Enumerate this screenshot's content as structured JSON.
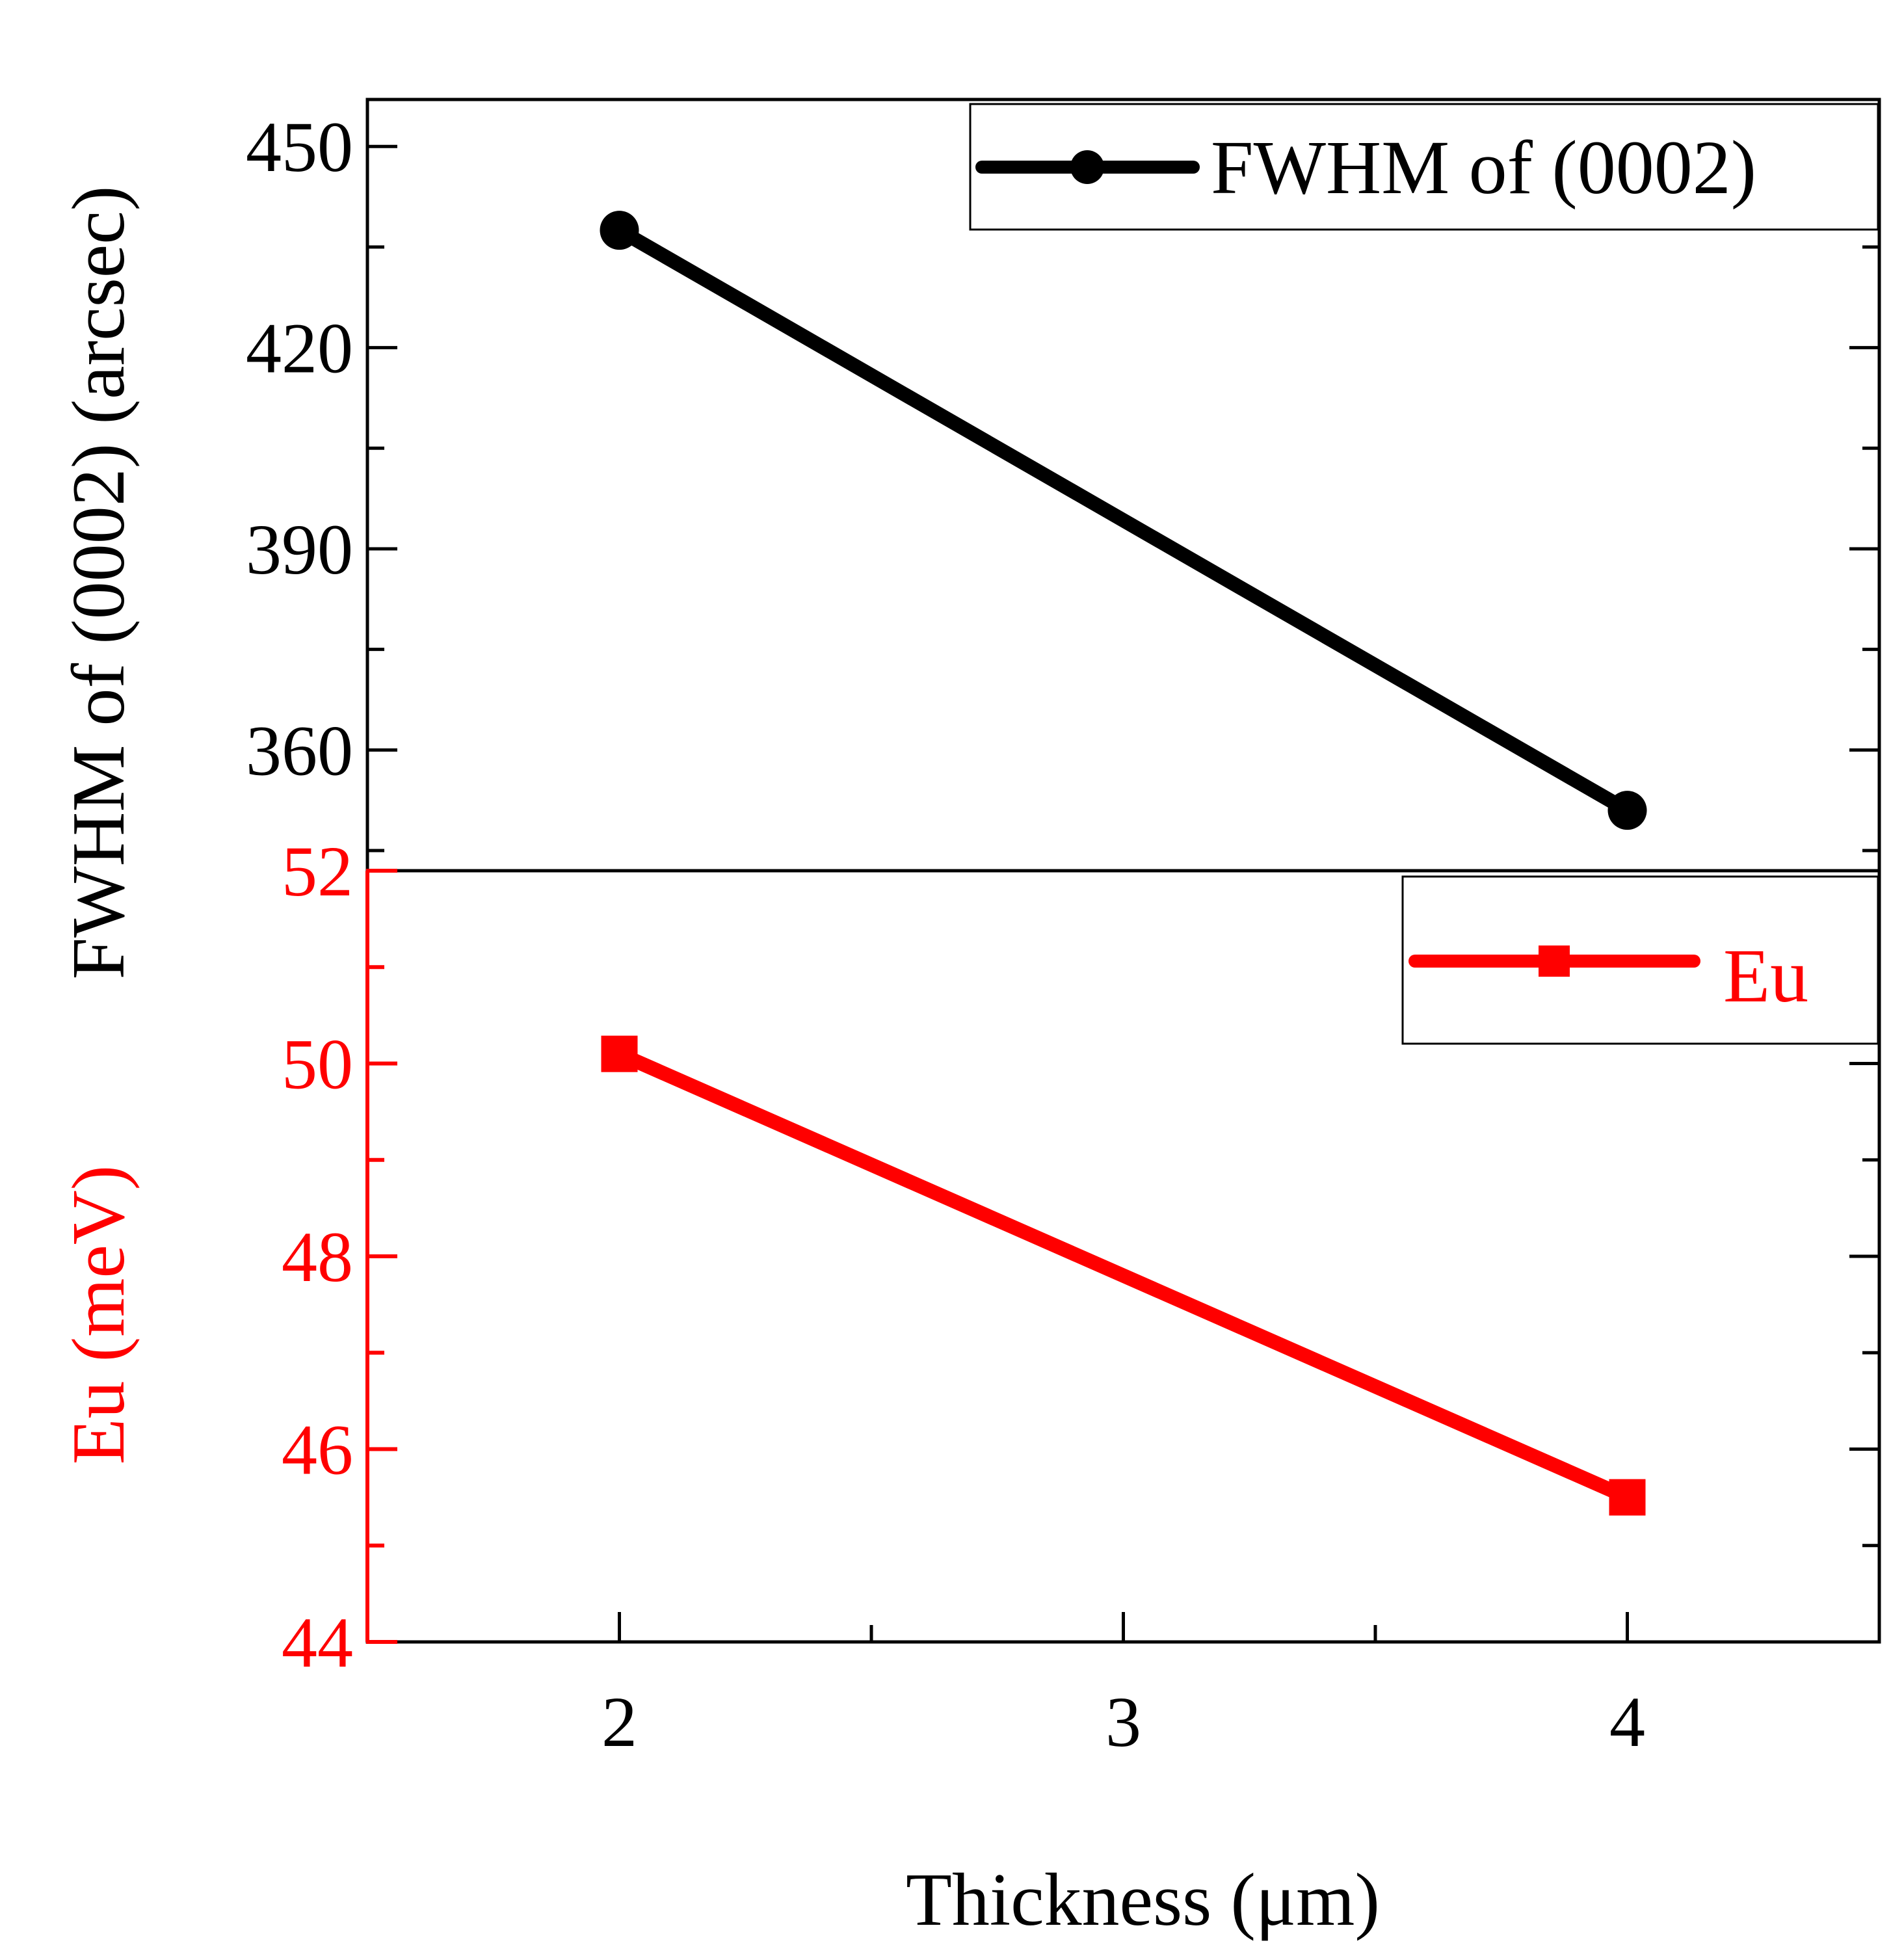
{
  "chart_data": [
    {
      "type": "line",
      "panel": "top",
      "x": [
        2,
        4
      ],
      "series": [
        {
          "name": "FWHM of (0002)",
          "values": [
            437.5,
            351
          ],
          "color": "#000000",
          "marker": "circle"
        }
      ],
      "ylabel": "FWHM of (0002) (arcsec)",
      "ylim": [
        342,
        457
      ],
      "yticks": [
        360,
        390,
        420,
        450
      ],
      "ytick_labels": [
        "360",
        "390",
        "420",
        "450"
      ],
      "legend": {
        "label": "FWHM of (0002)",
        "position": "top-right"
      }
    },
    {
      "type": "line",
      "panel": "bottom",
      "x": [
        2,
        4
      ],
      "series": [
        {
          "name": "Eu",
          "values": [
            50.1,
            45.5
          ],
          "color": "#ff0000",
          "marker": "square"
        }
      ],
      "ylabel": "Eu (meV)",
      "ylim": [
        44,
        52
      ],
      "yticks": [
        44,
        46,
        48,
        50,
        52
      ],
      "ytick_labels": [
        "44",
        "46",
        "48",
        "50",
        "52"
      ],
      "legend": {
        "label": "Eu",
        "position": "top-right"
      }
    }
  ],
  "shared_x": {
    "xlabel": "Thickness (μm)",
    "xlim": [
      1.5,
      4.5
    ],
    "xticks": [
      2,
      3,
      4
    ],
    "xtick_labels": [
      "2",
      "3",
      "4"
    ]
  }
}
